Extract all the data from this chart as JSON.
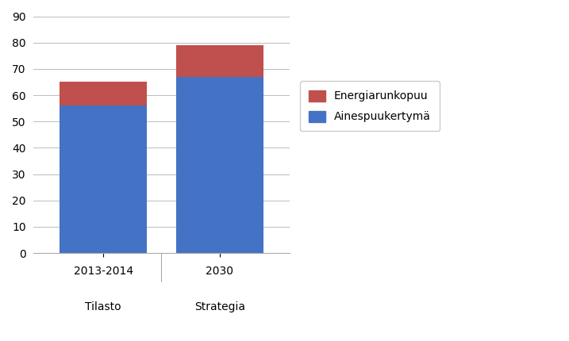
{
  "categories_top": [
    "2013-2014",
    "2030"
  ],
  "categories_bottom": [
    "Tilasto",
    "Strategia"
  ],
  "ainespuu": [
    56,
    67
  ],
  "energia": [
    9,
    12
  ],
  "ainespuu_color": "#4472C4",
  "energia_color": "#C0504D",
  "ylim": [
    0,
    90
  ],
  "yticks": [
    0,
    10,
    20,
    30,
    40,
    50,
    60,
    70,
    80,
    90
  ],
  "legend_labels": [
    "Energiarunkopuu",
    "Ainespuukertymä"
  ],
  "background_color": "#ffffff",
  "bar_width": 0.75,
  "figsize": [
    7.17,
    4.3
  ],
  "dpi": 100,
  "grid_color": "#bbbbbb",
  "spine_color": "#aaaaaa"
}
